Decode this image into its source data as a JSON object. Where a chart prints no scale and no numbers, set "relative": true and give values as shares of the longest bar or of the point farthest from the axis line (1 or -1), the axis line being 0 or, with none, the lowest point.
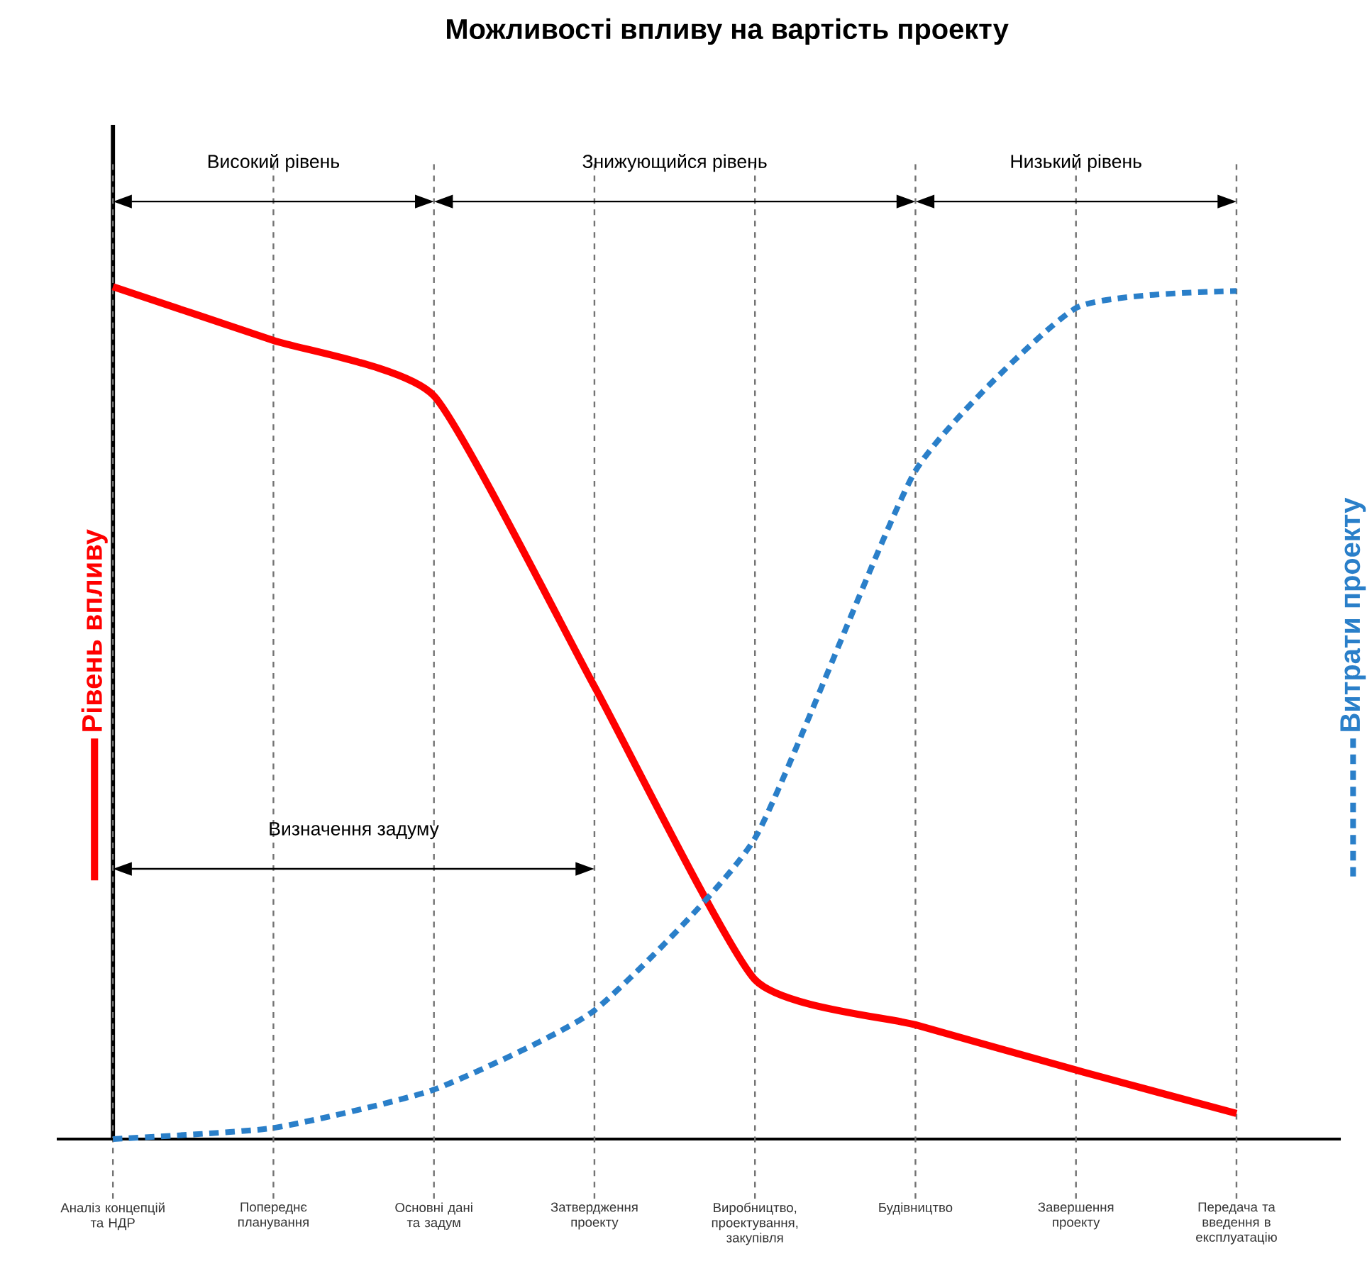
{
  "chart_data": {
    "type": "line",
    "title": "Можливості впливу на вартість проекту",
    "relative": true,
    "grid": "x",
    "legend": "left",
    "marker": "none",
    "categories": [
      "Аналіз концепцій та НДР",
      "Попереднє планування",
      "Основні дані та задум",
      "Затвердження проекту",
      "Виробництво, проектування, закупівля",
      "Будівництво",
      "Завершення проекту",
      "Передача та введення в експлуатацію"
    ],
    "series": [
      {
        "name": "Рівень впливу",
        "color": "#ff0000",
        "line_style": "solid",
        "values": [
          1.0,
          0.937,
          0.872,
          0.531,
          0.187,
          0.134,
          0.081,
          0.03
        ]
      },
      {
        "name": "Витрати проекту",
        "color": "#2a7fc9",
        "line_style": "dotted",
        "values": [
          0.0,
          0.013,
          0.058,
          0.151,
          0.353,
          0.784,
          0.975,
          0.995
        ]
      }
    ],
    "annotations": [
      "Високий рівень",
      "Знижующийся рівень",
      "Низький рівень",
      "Визначення задуму"
    ]
  }
}
